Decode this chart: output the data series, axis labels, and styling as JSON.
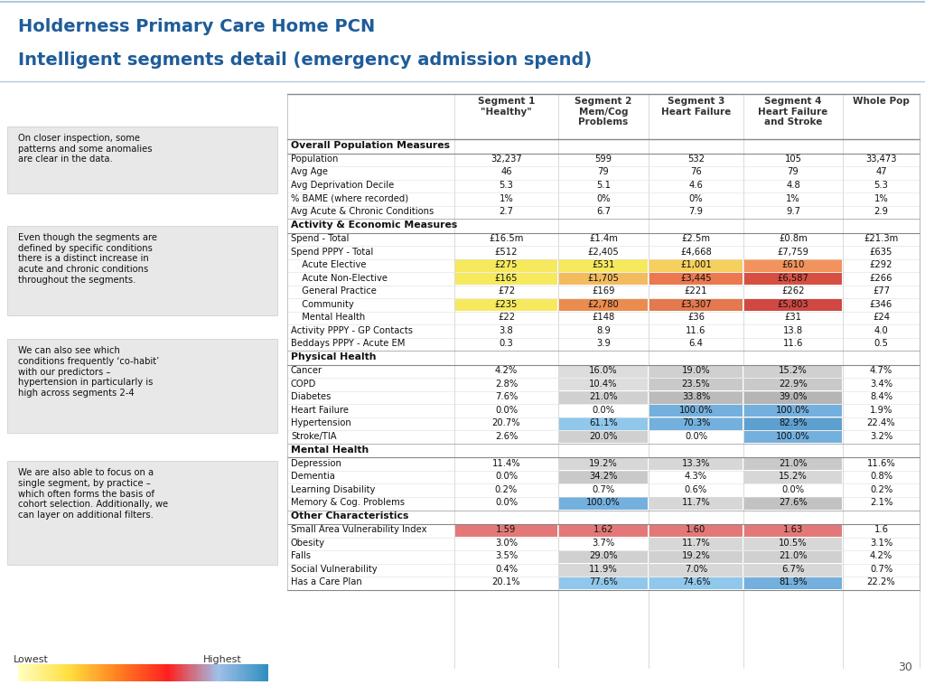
{
  "title_line1": "Holderness Primary Care Home PCN",
  "title_line2": "Intelligent segments detail (emergency admission spend)",
  "title_color": "#1F5C99",
  "background_color": "#FFFFFF",
  "header_bg": "#FFFFFF",
  "col_headers": [
    "Segment 1\n\"Healthy\"",
    "Segment 2\nMem/Cog\nProblems",
    "Segment 3\nHeart Failure",
    "Segment 4\nHeart Failure\nand Stroke",
    "Whole Pop"
  ],
  "sections": [
    {
      "name": "Overall Population Measures",
      "rows": [
        {
          "label": "Population",
          "values": [
            "32,237",
            "599",
            "532",
            "105",
            "33,473"
          ],
          "colors": [
            null,
            null,
            null,
            null,
            null
          ]
        },
        {
          "label": "Avg Age",
          "values": [
            "46",
            "79",
            "76",
            "79",
            "47"
          ],
          "colors": [
            null,
            null,
            null,
            null,
            null
          ]
        },
        {
          "label": "Avg Deprivation Decile",
          "values": [
            "5.3",
            "5.1",
            "4.6",
            "4.8",
            "5.3"
          ],
          "colors": [
            null,
            null,
            null,
            null,
            null
          ]
        },
        {
          "label": "% BAME (where recorded)",
          "values": [
            "1%",
            "0%",
            "0%",
            "1%",
            "1%"
          ],
          "colors": [
            null,
            null,
            null,
            null,
            null
          ]
        },
        {
          "label": "Avg Acute & Chronic Conditions",
          "values": [
            "2.7",
            "6.7",
            "7.9",
            "9.7",
            "2.9"
          ],
          "colors": [
            null,
            null,
            null,
            null,
            null
          ]
        }
      ]
    },
    {
      "name": "Activity & Economic Measures",
      "rows": [
        {
          "label": "Spend - Total",
          "values": [
            "£16.5m",
            "£1.4m",
            "£2.5m",
            "£0.8m",
            "£21.3m"
          ],
          "colors": [
            null,
            null,
            null,
            null,
            null
          ]
        },
        {
          "label": "Spend PPPY - Total",
          "values": [
            "£512",
            "£2,405",
            "£4,668",
            "£7,759",
            "£635"
          ],
          "colors": [
            null,
            null,
            null,
            null,
            null
          ]
        },
        {
          "label": "  Acute Elective",
          "values": [
            "£275",
            "£531",
            "£1,001",
            "£610",
            "£292"
          ],
          "colors": [
            "#F5E642",
            "#F5E642",
            "#F5C842",
            "#F08040",
            null
          ],
          "indent": true
        },
        {
          "label": "  Acute Non-Elective",
          "values": [
            "£165",
            "£1,705",
            "£3,445",
            "£6,587",
            "£266"
          ],
          "colors": [
            "#F5E642",
            "#F0B040",
            "#E86030",
            "#D03020",
            null
          ],
          "indent": true
        },
        {
          "label": "  General Practice",
          "values": [
            "£72",
            "£169",
            "£221",
            "£262",
            "£77"
          ],
          "colors": [
            null,
            null,
            null,
            null,
            null
          ],
          "indent": true
        },
        {
          "label": "  Community",
          "values": [
            "£235",
            "£2,780",
            "£3,307",
            "£5,803",
            "£346"
          ],
          "colors": [
            "#F5E642",
            "#E87830",
            "#E06030",
            "#C82820",
            null
          ],
          "indent": true
        },
        {
          "label": "  Mental Health",
          "values": [
            "£22",
            "£148",
            "£36",
            "£31",
            "£24"
          ],
          "colors": [
            null,
            null,
            null,
            null,
            null
          ],
          "indent": true
        },
        {
          "label": "Activity PPPY - GP Contacts",
          "values": [
            "3.8",
            "8.9",
            "11.6",
            "13.8",
            "4.0"
          ],
          "colors": [
            null,
            null,
            null,
            null,
            null
          ]
        },
        {
          "label": "Beddays PPPY - Acute EM",
          "values": [
            "0.3",
            "3.9",
            "6.4",
            "11.6",
            "0.5"
          ],
          "colors": [
            null,
            null,
            null,
            null,
            null
          ]
        }
      ]
    },
    {
      "name": "Physical Health",
      "rows": [
        {
          "label": "Cancer",
          "values": [
            "4.2%",
            "16.0%",
            "19.0%",
            "15.2%",
            "4.7%"
          ],
          "colors": [
            null,
            "#D8D8D8",
            "#C8C8C8",
            "#C8C8C8",
            null
          ]
        },
        {
          "label": "COPD",
          "values": [
            "2.8%",
            "10.4%",
            "23.5%",
            "22.9%",
            "3.4%"
          ],
          "colors": [
            null,
            "#D8D8D8",
            "#C0C0C0",
            "#C0C0C0",
            null
          ]
        },
        {
          "label": "Diabetes",
          "values": [
            "7.6%",
            "21.0%",
            "33.8%",
            "39.0%",
            "8.4%"
          ],
          "colors": [
            null,
            "#C8C8C8",
            "#B0B0B0",
            "#A8A8A8",
            null
          ]
        },
        {
          "label": "Heart Failure",
          "values": [
            "0.0%",
            "0.0%",
            "100.0%",
            "100.0%",
            "1.9%"
          ],
          "colors": [
            null,
            null,
            "#5BA3D9",
            "#5BA3D9",
            null
          ]
        },
        {
          "label": "Hypertension",
          "values": [
            "20.7%",
            "61.1%",
            "70.3%",
            "82.9%",
            "22.4%"
          ],
          "colors": [
            null,
            "#7BBFE8",
            "#5BA3D9",
            "#4090C8",
            null
          ]
        },
        {
          "label": "Stroke/TIA",
          "values": [
            "2.6%",
            "20.0%",
            "0.0%",
            "100.0%",
            "3.2%"
          ],
          "colors": [
            null,
            "#C8C8C8",
            null,
            "#5BA3D9",
            null
          ]
        }
      ]
    },
    {
      "name": "Mental Health",
      "rows": [
        {
          "label": "Depression",
          "values": [
            "11.4%",
            "19.2%",
            "13.3%",
            "21.0%",
            "11.6%"
          ],
          "colors": [
            null,
            "#D0D0D0",
            "#D0D0D0",
            "#C0C0C0",
            null
          ]
        },
        {
          "label": "Dementia",
          "values": [
            "0.0%",
            "34.2%",
            "4.3%",
            "15.2%",
            "0.8%"
          ],
          "colors": [
            null,
            "#C0C0C0",
            null,
            "#D0D0D0",
            null
          ]
        },
        {
          "label": "Learning Disability",
          "values": [
            "0.2%",
            "0.7%",
            "0.6%",
            "0.0%",
            "0.2%"
          ],
          "colors": [
            null,
            null,
            null,
            null,
            null
          ]
        },
        {
          "label": "Memory & Cog. Problems",
          "values": [
            "0.0%",
            "100.0%",
            "11.7%",
            "27.6%",
            "2.1%"
          ],
          "colors": [
            null,
            "#5BA3D9",
            "#D0D0D0",
            "#B8B8B8",
            null
          ]
        }
      ]
    },
    {
      "name": "Other Characteristics",
      "rows": [
        {
          "label": "Small Area Vulnerability Index",
          "values": [
            "1.59",
            "1.62",
            "1.60",
            "1.63",
            "1.6"
          ],
          "colors": [
            "#E06060",
            "#E06060",
            "#E06060",
            "#E06060",
            null
          ]
        },
        {
          "label": "Obesity",
          "values": [
            "3.0%",
            "3.7%",
            "11.7%",
            "10.5%",
            "3.1%"
          ],
          "colors": [
            null,
            null,
            "#D0D0D0",
            "#D0D0D0",
            null
          ]
        },
        {
          "label": "Falls",
          "values": [
            "3.5%",
            "29.0%",
            "19.2%",
            "21.0%",
            "4.2%"
          ],
          "colors": [
            null,
            "#C8C8C8",
            "#C8C8C8",
            "#C8C8C8",
            null
          ]
        },
        {
          "label": "Social Vulnerability",
          "values": [
            "0.4%",
            "11.9%",
            "7.0%",
            "6.7%",
            "0.7%"
          ],
          "colors": [
            null,
            "#D0D0D0",
            "#D0D0D0",
            "#D0D0D0",
            null
          ]
        },
        {
          "label": "Has a Care Plan",
          "values": [
            "20.1%",
            "77.6%",
            "74.6%",
            "81.9%",
            "22.2%"
          ],
          "colors": [
            null,
            "#7BBFE8",
            "#7BBFE8",
            "#5BA3D9",
            null
          ]
        }
      ]
    }
  ],
  "text_boxes": [
    "On closer inspection, some\npatterns and some anomalies\nare clear in the data.",
    "Even though the segments are\ndefined by specific conditions\nthere is a distinct increase in\nacute and chronic conditions\nthroughout the segments.",
    "We can also see which\nconditions frequently ‘co-habit’\nwith our predictors –\nhypertension in particularly is\nhigh across segments 2-4",
    "We are also able to focus on a\nsingle segment, by practice –\nwhich often forms the basis of\ncohort selection. Additionally, we\ncan layer on additional filters."
  ],
  "page_number": "30"
}
